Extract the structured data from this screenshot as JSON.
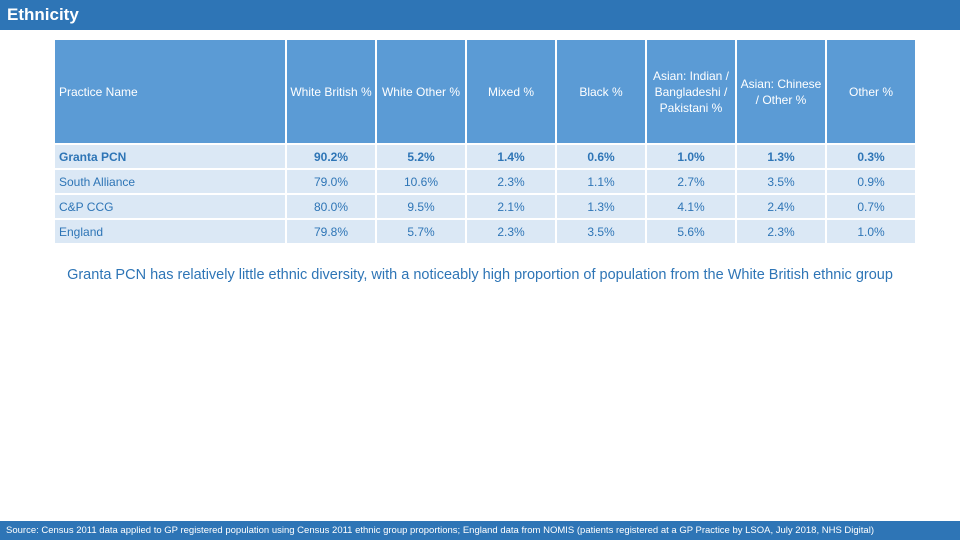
{
  "header": {
    "title": "Ethnicity"
  },
  "table": {
    "columns": [
      "Practice Name",
      "White British %",
      "White Other %",
      "Mixed %",
      "Black %",
      "Asian: Indian / Bangladeshi / Pakistani %",
      "Asian: Chinese / Other %",
      "Other %"
    ],
    "rows": [
      [
        "Granta PCN",
        "90.2%",
        "5.2%",
        "1.4%",
        "0.6%",
        "1.0%",
        "1.3%",
        "0.3%"
      ],
      [
        "South Alliance",
        "79.0%",
        "10.6%",
        "2.3%",
        "1.1%",
        "2.7%",
        "3.5%",
        "0.9%"
      ],
      [
        "C&P CCG",
        "80.0%",
        "9.5%",
        "2.1%",
        "1.3%",
        "4.1%",
        "2.4%",
        "0.7%"
      ],
      [
        "England",
        "79.8%",
        "5.7%",
        "2.3%",
        "3.5%",
        "5.6%",
        "2.3%",
        "1.0%"
      ]
    ]
  },
  "caption": "Granta PCN has relatively little ethnic diversity, with a noticeably high proportion of population from the White British ethnic group",
  "footer": "Source: Census 2011 data applied to GP registered population using Census 2011 ethnic group proportions; England data from NOMIS (patients registered at a GP Practice by LSOA, July 2018, NHS Digital)"
}
